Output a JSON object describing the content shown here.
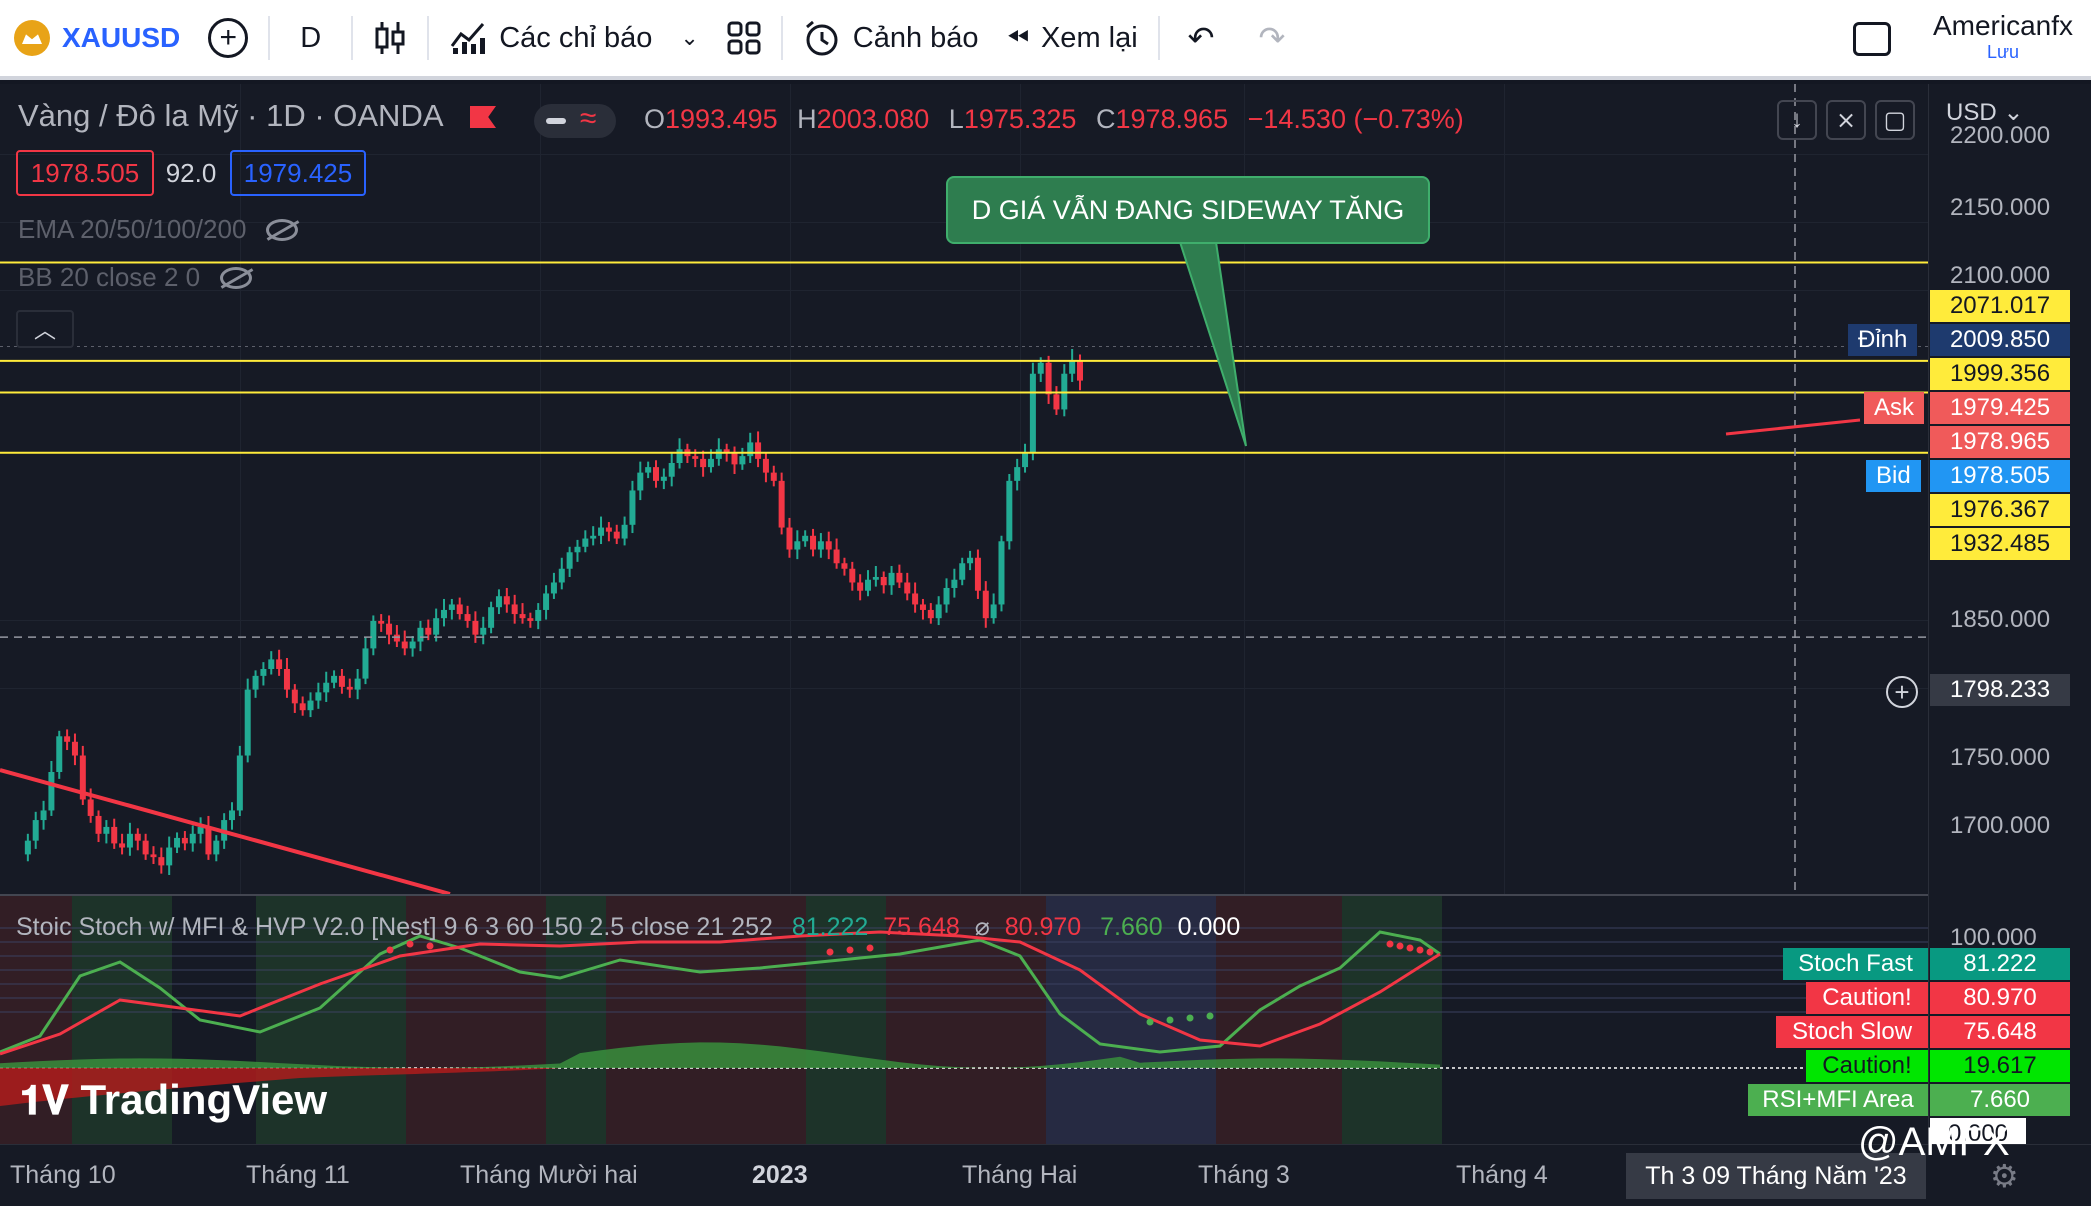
{
  "toolbar": {
    "symbol": "XAUUSD",
    "interval": "D",
    "indicators_label": "Các chỉ báo",
    "alerts_label": "Cảnh báo",
    "replay_label": "Xem lại",
    "user_name": "Americanfx",
    "save_label": "Lưu"
  },
  "legend": {
    "title": "Vàng / Đô la Mỹ · 1D · OANDA",
    "open_key": "O",
    "open": "1993.495",
    "high_key": "H",
    "high": "2003.080",
    "low_key": "L",
    "low": "1975.325",
    "close_key": "C",
    "close": "1978.965",
    "change": "−14.530 (−0.73%)",
    "sell_price": "1978.505",
    "spread": "92.0",
    "buy_price": "1979.425",
    "indicator_ema": "EMA 20/50/100/200",
    "indicator_bb": "BB 20 close 2 0"
  },
  "annotation": "D GIÁ VẪN ĐANG SIDEWAY TĂNG",
  "price_axis": {
    "currency": "USD",
    "ticks": [
      "2200.000",
      "2150.000",
      "2100.000",
      "1850.000",
      "1750.000",
      "1700.000"
    ],
    "crosshair_price": "1798.233",
    "level_tags": [
      "2071.017",
      "1999.356",
      "1976.367",
      "1932.485"
    ],
    "high_label": "Đỉnh",
    "high_price": "2009.850",
    "ask_label": "Ask",
    "ask_price": "1979.425",
    "last_price": "1978.965",
    "bid_label": "Bid",
    "bid_price": "1978.505"
  },
  "oscillator": {
    "name": "Stoic Stoch w/ MFI & HVP V2.0 [Nest] 9 6 3 60 150 2.5 close 21 252",
    "v1": "81.222",
    "v2": "75.648",
    "sep": "⌀",
    "v3": "80.970",
    "v4": "7.660",
    "v5": "0.000",
    "axis_top": "100.000",
    "tags": [
      {
        "label": "Stoch Fast",
        "value": "81.222"
      },
      {
        "label": "Caution!",
        "value": "80.970"
      },
      {
        "label": "Stoch Slow",
        "value": "75.648"
      },
      {
        "label": "Caution!",
        "value": "19.617"
      },
      {
        "label": "RSI+MFI Area",
        "value": "7.660"
      },
      {
        "label": "",
        "value": "0.000"
      }
    ]
  },
  "time_axis": {
    "labels": [
      "Tháng 10",
      "Tháng 11",
      "Tháng Mười hai",
      "2023",
      "Tháng Hai",
      "Tháng 3",
      "Tháng 4"
    ],
    "cursor_date": "Th 3 09 Tháng Năm '23"
  },
  "branding": {
    "logo": "TradingView",
    "watermark": "@AMFX"
  },
  "colors": {
    "up": "#22ab94",
    "down": "#f23645",
    "level": "#ffeb3b",
    "accent": "#2962ff"
  }
}
